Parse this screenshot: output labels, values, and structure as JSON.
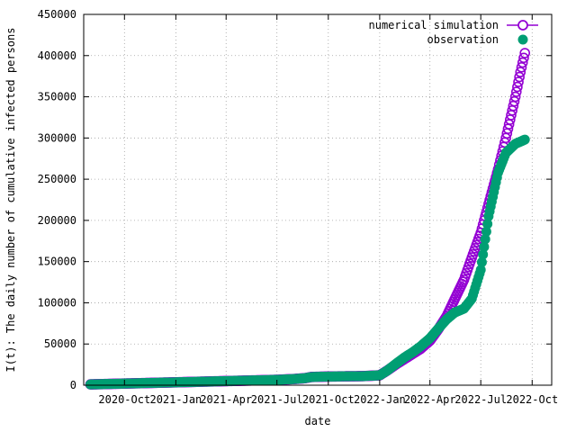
{
  "chart_data": {
    "type": "scatter",
    "title": "",
    "xlabel": "date",
    "ylabel": "I(t): The daily number of cumulative infected persons",
    "ylim": [
      0,
      450000
    ],
    "xlim": [
      "2020-07-20",
      "2022-11-05"
    ],
    "grid": true,
    "legend_position": "top-right",
    "x_ticks": [
      {
        "date": "2020-10-01",
        "label": "2020-Oct"
      },
      {
        "date": "2021-01-01",
        "label": "2021-Jan"
      },
      {
        "date": "2021-04-01",
        "label": "2021-Apr"
      },
      {
        "date": "2021-07-01",
        "label": "2021-Jul"
      },
      {
        "date": "2021-10-01",
        "label": "2021-Oct"
      },
      {
        "date": "2022-01-01",
        "label": "2022-Jan"
      },
      {
        "date": "2022-04-01",
        "label": "2022-Apr"
      },
      {
        "date": "2022-07-01",
        "label": "2022-Jul"
      },
      {
        "date": "2022-10-01",
        "label": "2022-Oct"
      }
    ],
    "y_ticks": [
      0,
      50000,
      100000,
      150000,
      200000,
      250000,
      300000,
      350000,
      400000,
      450000
    ],
    "series": [
      {
        "name": "numerical simulation",
        "marker": "open-circle",
        "color": "#9400d3",
        "points": [
          [
            "2020-08-01",
            1000
          ],
          [
            "2020-09-01",
            1500
          ],
          [
            "2020-10-01",
            2000
          ],
          [
            "2020-11-01",
            2500
          ],
          [
            "2020-12-01",
            3000
          ],
          [
            "2021-01-01",
            3500
          ],
          [
            "2021-02-01",
            4000
          ],
          [
            "2021-03-01",
            4500
          ],
          [
            "2021-04-01",
            5000
          ],
          [
            "2021-05-01",
            5500
          ],
          [
            "2021-06-01",
            6000
          ],
          [
            "2021-07-01",
            6500
          ],
          [
            "2021-08-01",
            7500
          ],
          [
            "2021-08-20",
            8500
          ],
          [
            "2021-09-01",
            10000
          ],
          [
            "2021-10-01",
            10500
          ],
          [
            "2021-11-01",
            10800
          ],
          [
            "2021-12-01",
            11000
          ],
          [
            "2022-01-01",
            12000
          ],
          [
            "2022-01-15",
            18000
          ],
          [
            "2022-02-01",
            26000
          ],
          [
            "2022-02-15",
            32000
          ],
          [
            "2022-03-01",
            38000
          ],
          [
            "2022-03-15",
            44000
          ],
          [
            "2022-04-01",
            54000
          ],
          [
            "2022-04-15",
            67000
          ],
          [
            "2022-05-01",
            84000
          ],
          [
            "2022-05-15",
            104000
          ],
          [
            "2022-06-01",
            128000
          ],
          [
            "2022-06-15",
            155000
          ],
          [
            "2022-07-01",
            185000
          ],
          [
            "2022-07-15",
            220000
          ],
          [
            "2022-08-01",
            262000
          ],
          [
            "2022-08-15",
            300000
          ],
          [
            "2022-09-01",
            350000
          ],
          [
            "2022-09-10",
            380000
          ],
          [
            "2022-09-18",
            403000
          ]
        ]
      },
      {
        "name": "observation",
        "marker": "filled-circle",
        "color": "#009e73",
        "points": [
          [
            "2020-08-01",
            1000
          ],
          [
            "2020-09-01",
            1500
          ],
          [
            "2020-10-01",
            2000
          ],
          [
            "2020-11-01",
            2500
          ],
          [
            "2020-12-01",
            3000
          ],
          [
            "2021-01-01",
            3500
          ],
          [
            "2021-02-01",
            4000
          ],
          [
            "2021-03-01",
            4500
          ],
          [
            "2021-04-01",
            5000
          ],
          [
            "2021-05-01",
            5500
          ],
          [
            "2021-06-01",
            6000
          ],
          [
            "2021-07-01",
            6500
          ],
          [
            "2021-08-01",
            7500
          ],
          [
            "2021-08-20",
            8500
          ],
          [
            "2021-09-01",
            10000
          ],
          [
            "2021-10-01",
            10500
          ],
          [
            "2021-11-01",
            10800
          ],
          [
            "2021-12-01",
            11000
          ],
          [
            "2022-01-01",
            12000
          ],
          [
            "2022-01-15",
            18000
          ],
          [
            "2022-02-01",
            27000
          ],
          [
            "2022-02-15",
            34000
          ],
          [
            "2022-03-01",
            40000
          ],
          [
            "2022-03-15",
            47000
          ],
          [
            "2022-04-01",
            57000
          ],
          [
            "2022-04-15",
            68000
          ],
          [
            "2022-05-01",
            80000
          ],
          [
            "2022-05-15",
            88000
          ],
          [
            "2022-06-01",
            93000
          ],
          [
            "2022-06-15",
            105000
          ],
          [
            "2022-07-01",
            140000
          ],
          [
            "2022-07-15",
            205000
          ],
          [
            "2022-08-01",
            258000
          ],
          [
            "2022-08-15",
            282000
          ],
          [
            "2022-09-01",
            293000
          ],
          [
            "2022-09-18",
            298000
          ]
        ]
      }
    ]
  }
}
